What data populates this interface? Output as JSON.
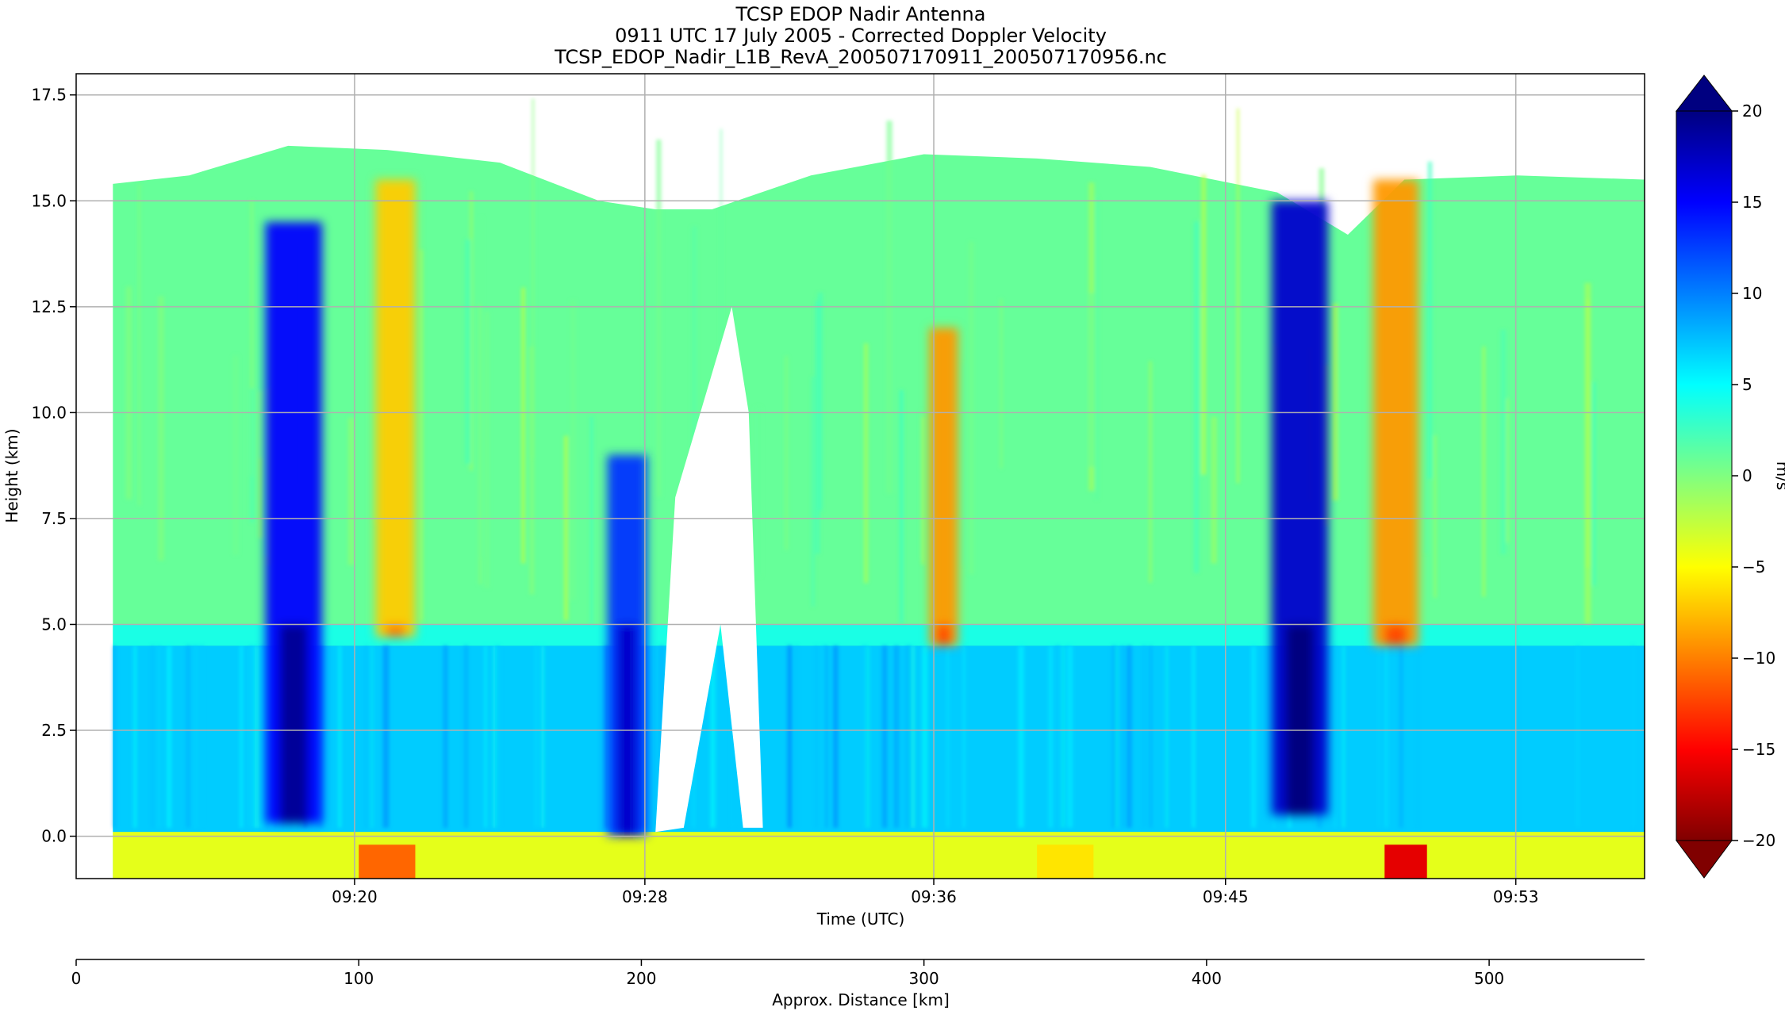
{
  "chart_data": {
    "type": "heatmap",
    "title": [
      "TCSP EDOP Nadir Antenna",
      "0911 UTC 17 July 2005 - Corrected Doppler Velocity",
      "TCSP_EDOP_Nadir_L1B_RevA_200507170911_200507170956.nc"
    ],
    "xlabel": "Time (UTC)",
    "ylabel": "Height (km)",
    "x_ticks": [
      "09:20",
      "09:28",
      "09:36",
      "09:45",
      "09:53"
    ],
    "y_ticks": [
      0.0,
      2.5,
      5.0,
      7.5,
      10.0,
      12.5,
      15.0,
      17.5
    ],
    "y_tick_labels": [
      "0.0",
      "2.5",
      "5.0",
      "7.5",
      "10.0",
      "12.5",
      "15.0",
      "17.5"
    ],
    "ylim": [
      -1.0,
      18.0
    ],
    "grid": true,
    "colorbar": {
      "label": "m/s",
      "range": [
        -20,
        20
      ],
      "ticks": [
        20,
        15,
        10,
        5,
        0,
        -5,
        -10,
        -15,
        -20
      ],
      "tick_labels": [
        "20",
        "15",
        "10",
        "5",
        "0",
        "−5",
        "−10",
        "−15",
        "−20"
      ],
      "colormap": "jet",
      "extend": "both"
    },
    "secondary_axis": {
      "label": "Approx. Distance [km]",
      "ticks": [
        0,
        100,
        200,
        300,
        400,
        500
      ],
      "tick_labels": [
        "0",
        "100",
        "200",
        "300",
        "400",
        "500"
      ],
      "range": [
        0,
        555
      ]
    },
    "features": [
      {
        "name": "updraft-1",
        "center_km": 77,
        "width_km": 20,
        "velocity": 15,
        "from_km": 0.3,
        "to_km": 14.5
      },
      {
        "name": "downdraft-1",
        "center_km": 113,
        "width_km": 14,
        "velocity": -7,
        "from_km": 4.7,
        "to_km": 15.5
      },
      {
        "name": "updraft-2",
        "center_km": 195,
        "width_km": 14,
        "velocity": 13,
        "from_km": 0.0,
        "to_km": 9.0
      },
      {
        "name": "downdraft-2",
        "center_km": 307,
        "width_km": 10,
        "velocity": -9,
        "from_km": 4.5,
        "to_km": 12.0
      },
      {
        "name": "updraft-3",
        "center_km": 433,
        "width_km": 20,
        "velocity": 17,
        "from_km": 0.5,
        "to_km": 15.0
      },
      {
        "name": "downdraft-3",
        "center_km": 467,
        "width_km": 16,
        "velocity": -9,
        "from_km": 4.5,
        "to_km": 15.5
      }
    ]
  }
}
